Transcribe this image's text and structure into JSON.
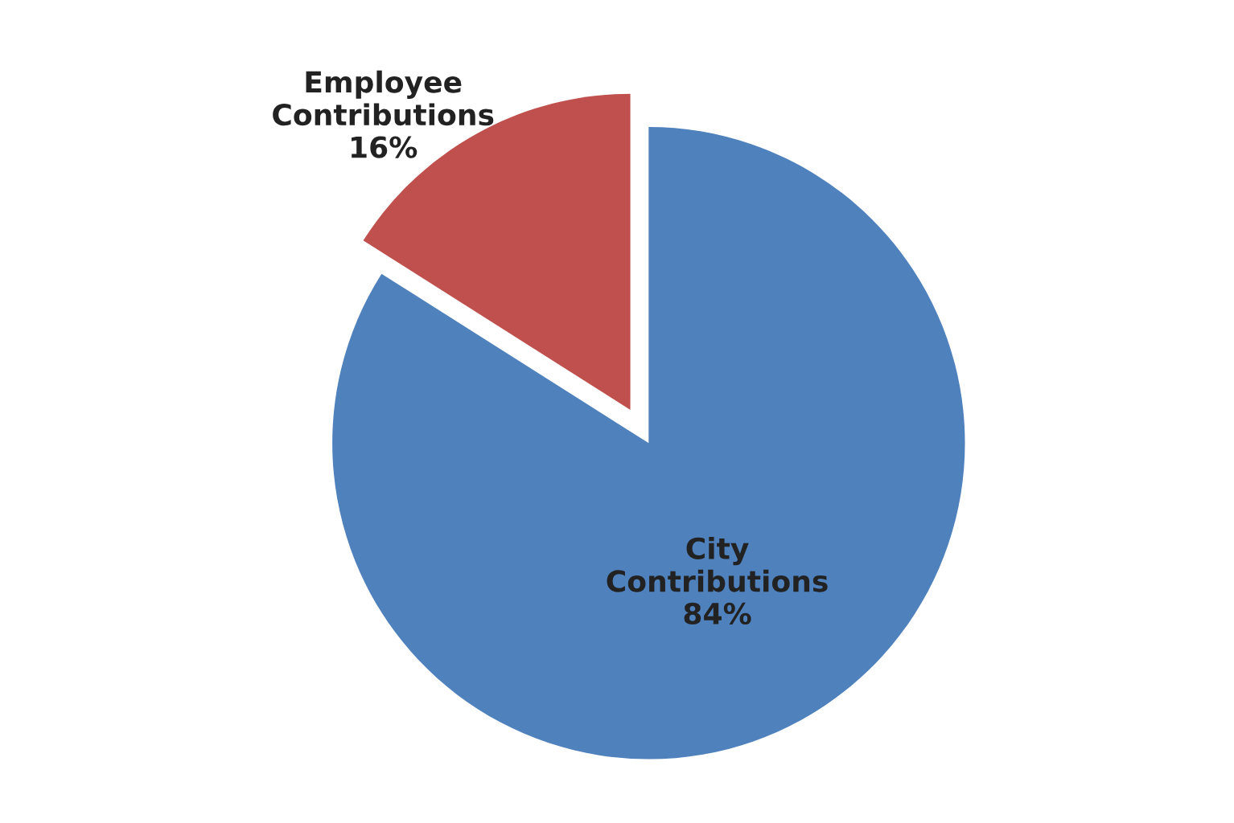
{
  "chart_data": {
    "type": "pie",
    "categories": [
      "City Contributions",
      "Employee Contributions"
    ],
    "values": [
      84,
      16
    ],
    "value_labels": [
      "84%",
      "16%"
    ],
    "colors": [
      "#4f81bd",
      "#c0504d"
    ],
    "legend": false
  }
}
